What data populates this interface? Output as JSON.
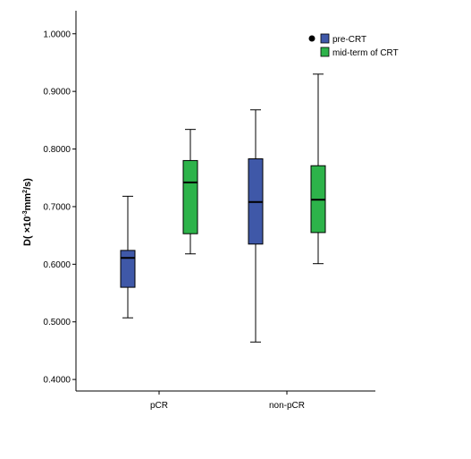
{
  "chart_data": {
    "type": "boxplot",
    "ylabel_parts": [
      "D( ×10",
      "-3",
      "mm",
      "2",
      "/s)"
    ],
    "ylim": [
      0.38,
      1.04
    ],
    "yticks": [
      "0.4000",
      "0.5000",
      "0.6000",
      "0.7000",
      "0.8000",
      "0.9000",
      "1.0000"
    ],
    "categories": [
      "pCR",
      "non-pCR"
    ],
    "legend": {
      "position": "top-right"
    },
    "series": [
      {
        "name": "pre-CRT",
        "color": "#3f58a8",
        "boxes": [
          {
            "min": 0.507,
            "q1": 0.56,
            "median": 0.611,
            "q3": 0.624,
            "max": 0.718
          },
          {
            "min": 0.465,
            "q1": 0.635,
            "median": 0.708,
            "q3": 0.783,
            "max": 0.868
          }
        ]
      },
      {
        "name": "mid-term of CRT",
        "color": "#2db34a",
        "boxes": [
          {
            "min": 0.618,
            "q1": 0.653,
            "median": 0.742,
            "q3": 0.78,
            "max": 0.834
          },
          {
            "min": 0.601,
            "q1": 0.655,
            "median": 0.712,
            "q3": 0.771,
            "max": 0.93
          }
        ]
      }
    ],
    "grid": false
  }
}
